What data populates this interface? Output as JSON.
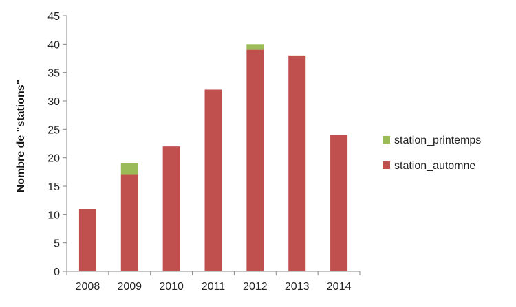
{
  "chart_data": {
    "type": "bar",
    "stacked": true,
    "categories": [
      "2008",
      "2009",
      "2010",
      "2011",
      "2012",
      "2013",
      "2014"
    ],
    "series": [
      {
        "name": "station_automne",
        "values": [
          11,
          17,
          22,
          32,
          39,
          38,
          24
        ],
        "color": "#c0504d"
      },
      {
        "name": "station_printemps",
        "values": [
          0,
          2,
          0,
          0,
          1,
          0,
          0
        ],
        "color": "#9bbb59"
      }
    ],
    "ylabel": "Nombre de \"stations\"",
    "ylim": [
      0,
      45
    ],
    "yticks": [
      0,
      5,
      10,
      15,
      20,
      25,
      30,
      35,
      40,
      45
    ],
    "grid": false,
    "legend_position": "right",
    "legend_order": [
      "station_printemps",
      "station_automne"
    ]
  }
}
